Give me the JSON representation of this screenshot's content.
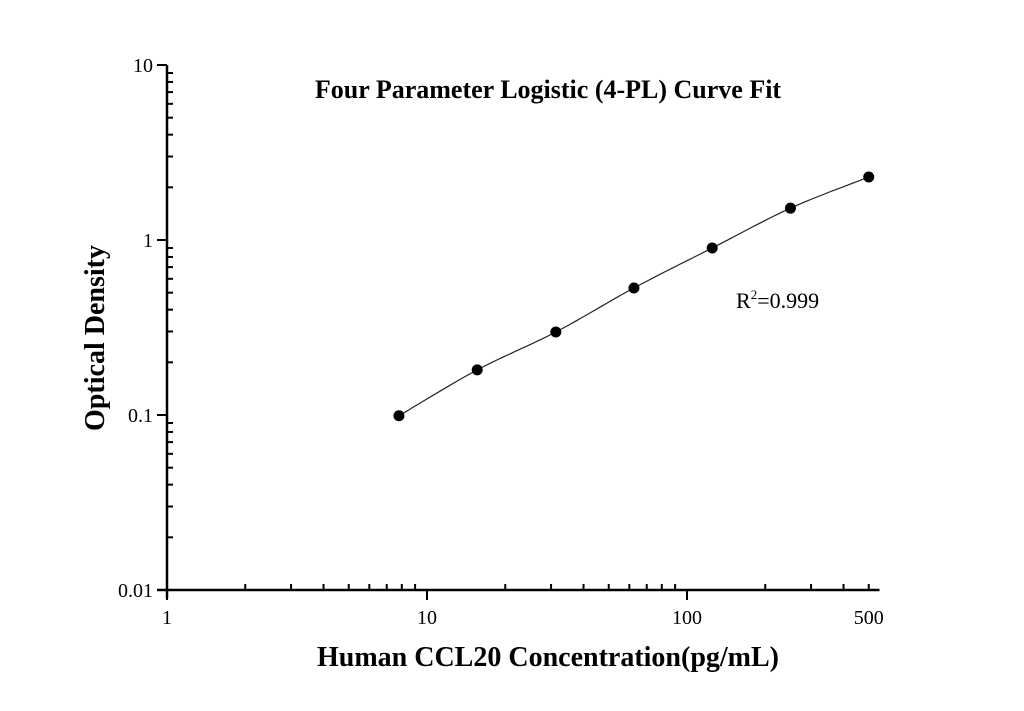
{
  "chart_data": {
    "type": "scatter",
    "title": "Four Parameter Logistic (4-PL) Curve Fit",
    "xlabel": "Human CCL20 Concentration(pg/mL)",
    "ylabel": "Optical Density",
    "xscale": "log",
    "yscale": "log",
    "xlim": [
      1,
      550
    ],
    "ylim": [
      0.01,
      10
    ],
    "x_ticks": [
      "1",
      "10",
      "100",
      "500"
    ],
    "y_ticks": [
      "0.01",
      "0.1",
      "1",
      "10"
    ],
    "grid": false,
    "legend": null,
    "series": [
      {
        "name": "Standards",
        "marker": "filled-circle",
        "x": [
          7.8,
          15.6,
          31.3,
          62.5,
          125,
          250,
          500
        ],
        "y": [
          0.099,
          0.181,
          0.298,
          0.532,
          0.9,
          1.52,
          2.29
        ]
      },
      {
        "name": "4-PL fit",
        "style": "line",
        "x": [
          7.8,
          500
        ]
      }
    ],
    "annotations": [
      {
        "text": "R2=0.999",
        "display": {
          "base": "R",
          "sup": "2",
          "rest": "=0.999"
        },
        "x": 230,
        "y": 0.55
      }
    ]
  },
  "labels": {
    "title": "Four Parameter Logistic (4-PL) Curve Fit",
    "xlabel": "Human CCL20 Concentration(pg/mL)",
    "ylabel": "Optical Density",
    "r2_base": "R",
    "r2_sup": "2",
    "r2_rest": "=0.999"
  }
}
